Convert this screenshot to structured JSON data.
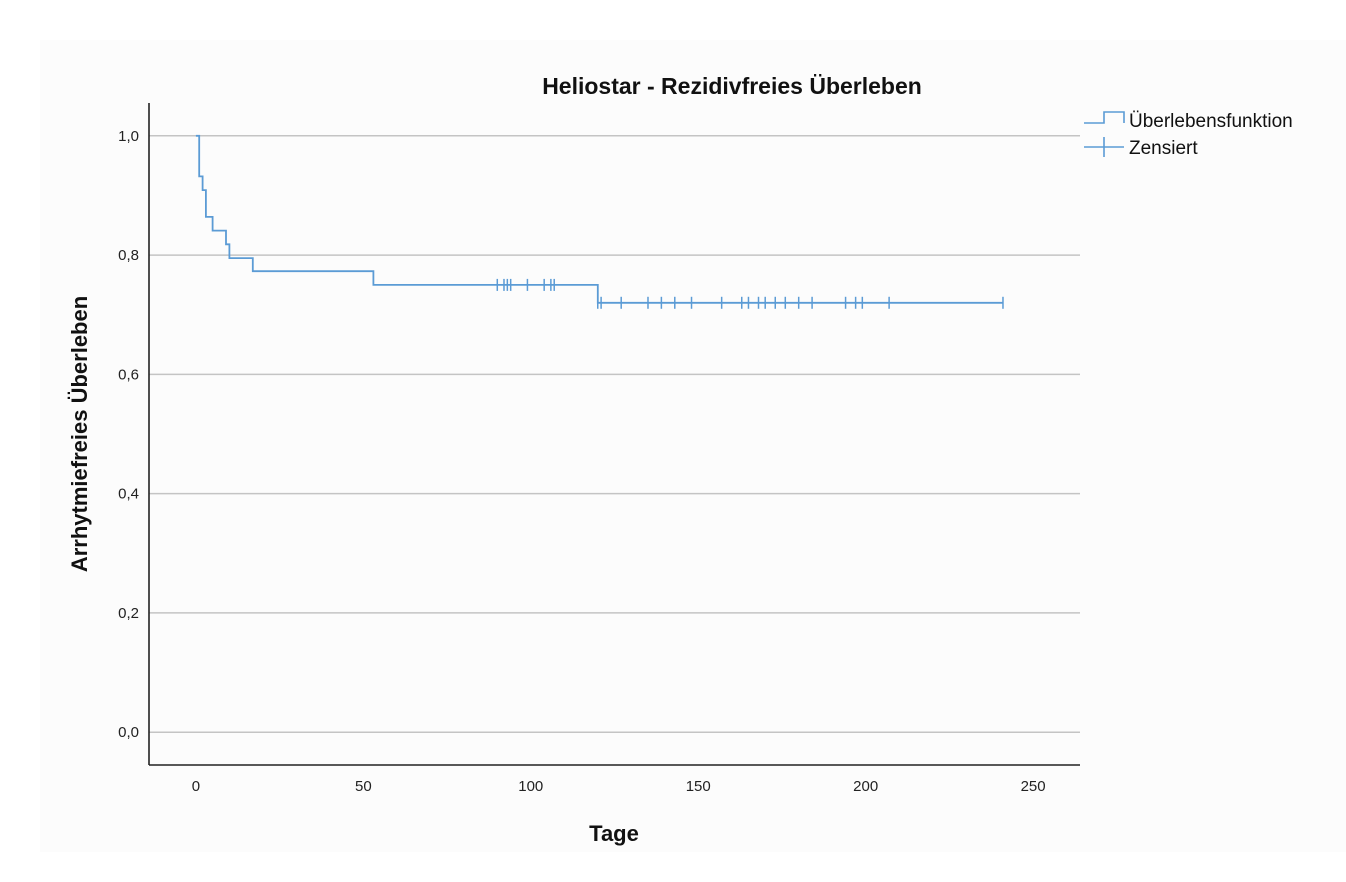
{
  "chart_data": {
    "type": "line",
    "title": "Heliostar - Rezidivfreies Überleben",
    "xlabel": "Tage",
    "ylabel": "Arrhytmiefreies Überleben",
    "xlim": [
      -14,
      264
    ],
    "ylim": [
      -0.055,
      1.055
    ],
    "x_ticks": [
      0,
      50,
      100,
      150,
      200,
      250
    ],
    "x_tick_labels": [
      "0",
      "50",
      "100",
      "150",
      "200",
      "250"
    ],
    "y_ticks": [
      0,
      0.2,
      0.4,
      0.6,
      0.8,
      1.0
    ],
    "y_tick_labels": [
      "0,0",
      "0,2",
      "0,4",
      "0,6",
      "0,8",
      "1,0"
    ],
    "grid": "horizontal",
    "legend_position": "top-right",
    "colors": {
      "series": "#5b9bd5",
      "grid": "#c4c4c4",
      "axis": "#222222"
    },
    "series": [
      {
        "name": "Überlebensfunktion",
        "step_x": [
          0,
          1,
          2,
          3,
          5,
          9,
          10,
          17,
          53,
          120,
          241
        ],
        "step_y": [
          1.0,
          0.932,
          0.909,
          0.864,
          0.841,
          0.818,
          0.795,
          0.773,
          0.75,
          0.72,
          0.72
        ]
      },
      {
        "name": "Zensiert",
        "censor_x": [
          90,
          92,
          93,
          94,
          99,
          104,
          106,
          107,
          120,
          121,
          127,
          135,
          139,
          143,
          148,
          157,
          163,
          165,
          168,
          170,
          173,
          176,
          180,
          184,
          194,
          197,
          199,
          207,
          241
        ],
        "censor_y": [
          0.75,
          0.75,
          0.75,
          0.75,
          0.75,
          0.75,
          0.75,
          0.75,
          0.72,
          0.72,
          0.72,
          0.72,
          0.72,
          0.72,
          0.72,
          0.72,
          0.72,
          0.72,
          0.72,
          0.72,
          0.72,
          0.72,
          0.72,
          0.72,
          0.72,
          0.72,
          0.72,
          0.72,
          0.72
        ]
      }
    ]
  }
}
